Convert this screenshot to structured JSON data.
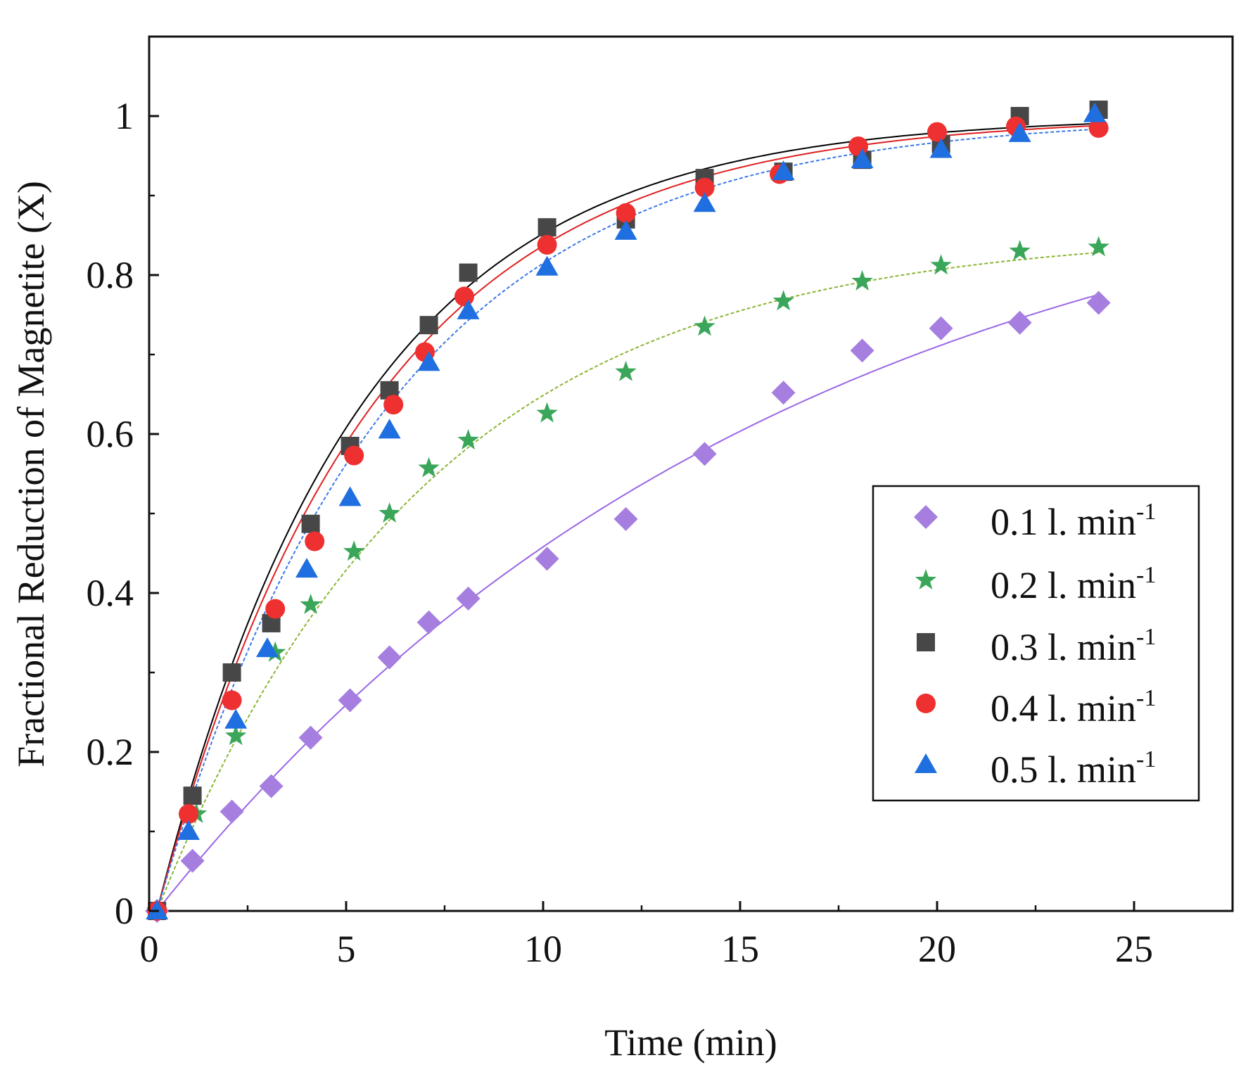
{
  "chart_data": {
    "type": "scatter",
    "title": "",
    "xlabel": "Time (min)",
    "ylabel": "Fractional Reduction of Magnetite (X)",
    "xlim": [
      0,
      27.5
    ],
    "ylim": [
      0,
      1.1
    ],
    "xticks": [
      0,
      5,
      10,
      15,
      20,
      25
    ],
    "xtick_labels": [
      "0",
      "5",
      "10",
      "15",
      "20",
      "25"
    ],
    "yticks": [
      0,
      0.2,
      0.4,
      0.6,
      0.8,
      1
    ],
    "ytick_labels": [
      "0",
      "0.2",
      "0.4",
      "0.6",
      "0.8",
      "1"
    ],
    "grid": false,
    "legend_position": "center-right",
    "series": [
      {
        "name": "0.1 l. min",
        "superscript": "-1",
        "marker": "diamond",
        "color": "#a57ee0",
        "fit_color": "#9a66e6",
        "fit_dash": false,
        "fit_k": 0.0625,
        "fit_max": 1.0,
        "x": [
          0.2,
          1.1,
          2.1,
          3.1,
          4.1,
          5.1,
          6.1,
          7.1,
          8.1,
          10.1,
          12.1,
          14.1,
          16.1,
          18.1,
          20.1,
          22.1,
          24.1
        ],
        "y": [
          0.0,
          0.063,
          0.125,
          0.157,
          0.218,
          0.265,
          0.319,
          0.363,
          0.393,
          0.443,
          0.493,
          0.575,
          0.652,
          0.705,
          0.733,
          0.74,
          0.765
        ]
      },
      {
        "name": "0.2 l. min",
        "superscript": "-1",
        "marker": "star",
        "color": "#3aa65a",
        "fit_color": "#8ab535",
        "fit_dash": true,
        "fit_k": 0.145,
        "fit_max": 0.855,
        "x": [
          0.2,
          1.2,
          2.2,
          3.2,
          4.1,
          5.2,
          6.1,
          7.1,
          8.1,
          10.1,
          12.1,
          14.1,
          16.1,
          18.1,
          20.1,
          22.1,
          24.1
        ],
        "y": [
          0.0,
          0.122,
          0.22,
          0.325,
          0.385,
          0.452,
          0.5,
          0.557,
          0.592,
          0.626,
          0.678,
          0.735,
          0.767,
          0.792,
          0.812,
          0.83,
          0.835
        ]
      },
      {
        "name": "0.3 l. min",
        "superscript": "-1",
        "marker": "square",
        "color": "#474747",
        "fit_color": "#000000",
        "fit_dash": false,
        "fit_k": 0.195,
        "fit_max": 1.0,
        "x": [
          0.2,
          1.1,
          2.1,
          3.1,
          4.1,
          5.1,
          6.1,
          7.1,
          8.1,
          10.1,
          12.1,
          14.1,
          16.1,
          18.1,
          20.1,
          22.1,
          24.1
        ],
        "y": [
          0.0,
          0.145,
          0.3,
          0.362,
          0.487,
          0.585,
          0.655,
          0.737,
          0.803,
          0.86,
          0.87,
          0.922,
          0.93,
          0.945,
          0.965,
          1.0,
          1.008
        ]
      },
      {
        "name": "0.4 l. min",
        "superscript": "-1",
        "marker": "circle",
        "color": "#ee3030",
        "fit_color": "#e02020",
        "fit_dash": false,
        "fit_k": 0.185,
        "fit_max": 1.0,
        "x": [
          0.2,
          1.0,
          2.1,
          3.2,
          4.2,
          5.2,
          6.2,
          7.0,
          8.0,
          10.1,
          12.1,
          14.1,
          16.0,
          18.0,
          20.0,
          22.0,
          24.1
        ],
        "y": [
          0.0,
          0.122,
          0.265,
          0.38,
          0.465,
          0.573,
          0.637,
          0.703,
          0.773,
          0.838,
          0.878,
          0.91,
          0.927,
          0.962,
          0.98,
          0.987,
          0.985
        ]
      },
      {
        "name": "0.5 l. min",
        "superscript": "-1",
        "marker": "triangle",
        "color": "#1f6fe0",
        "fit_color": "#3a78e8",
        "fit_dash": true,
        "fit_k": 0.172,
        "fit_max": 1.0,
        "x": [
          0.2,
          1.0,
          2.2,
          3.0,
          4.0,
          5.1,
          6.1,
          7.1,
          8.1,
          10.1,
          12.1,
          14.1,
          16.1,
          18.1,
          20.1,
          22.1,
          24.0
        ],
        "y": [
          0.0,
          0.1,
          0.24,
          0.33,
          0.43,
          0.52,
          0.605,
          0.69,
          0.755,
          0.81,
          0.855,
          0.89,
          0.93,
          0.945,
          0.958,
          0.978,
          1.003
        ]
      }
    ]
  }
}
